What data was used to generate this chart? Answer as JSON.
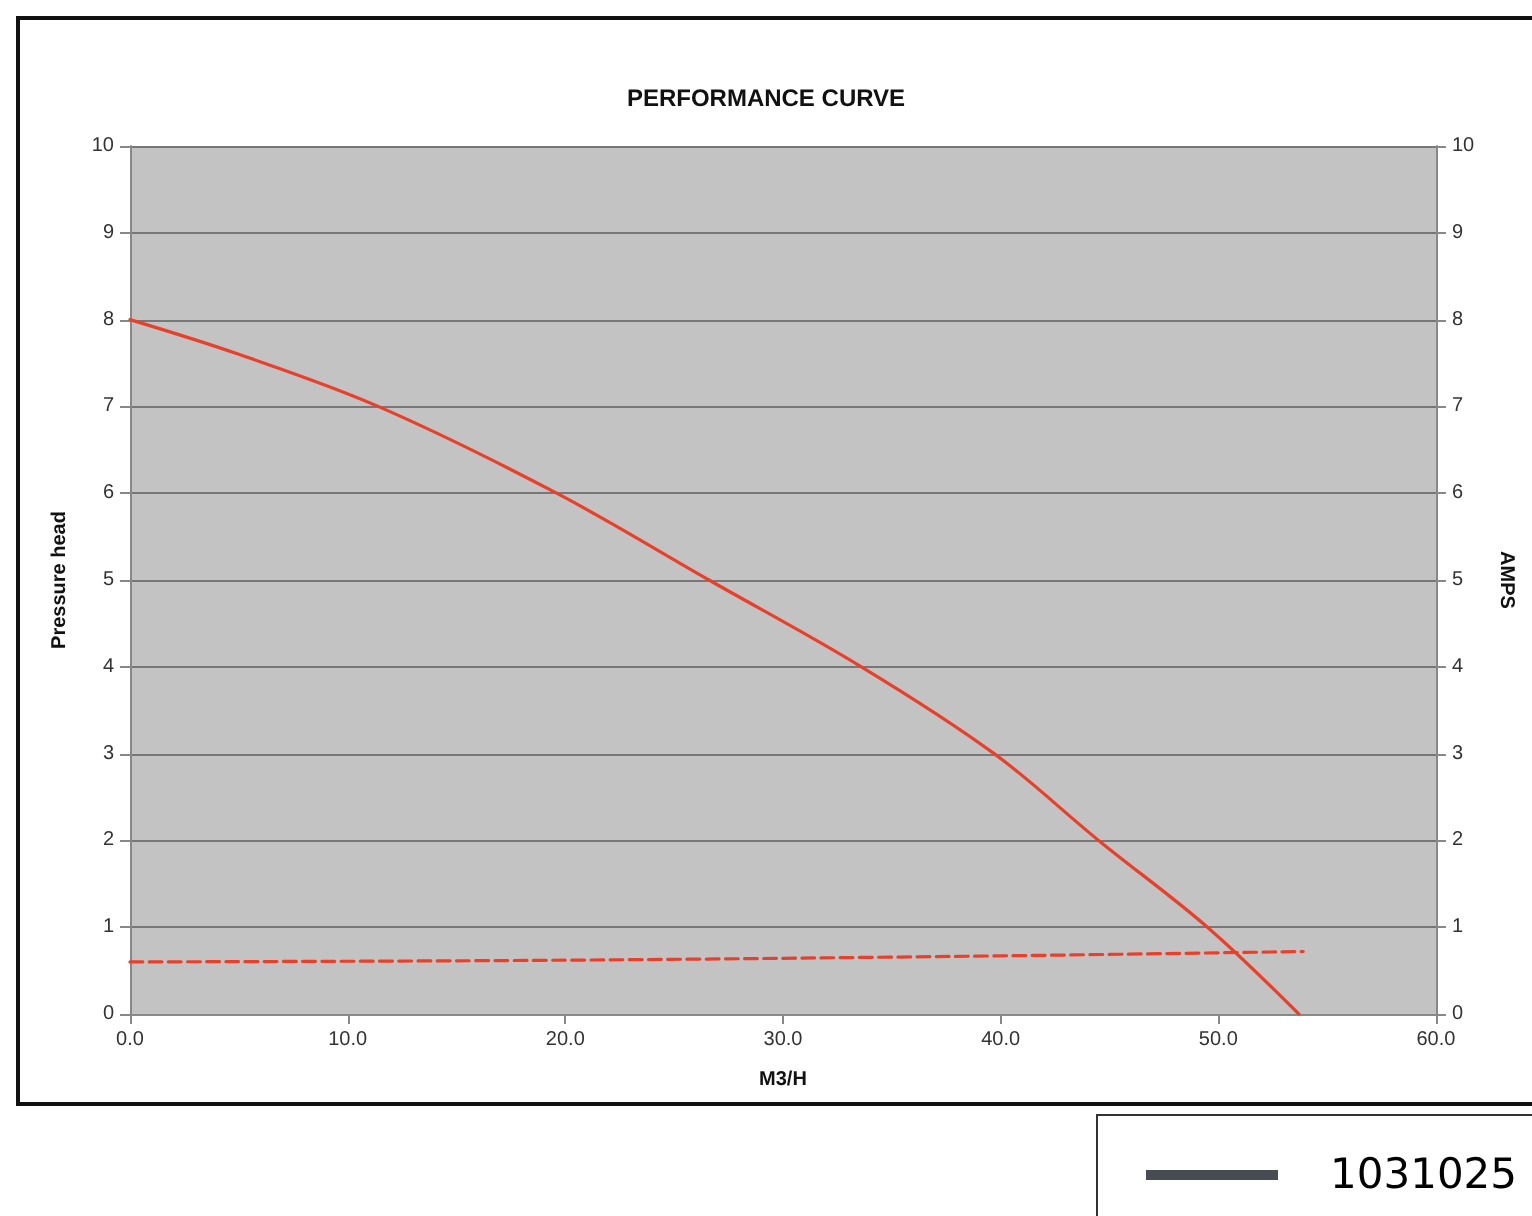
{
  "chart_data": {
    "type": "line",
    "title": "PERFORMANCE CURVE",
    "xlabel": "M3/H",
    "ylabel": "Pressure head",
    "y2label": "AMPS",
    "series": [
      {
        "color": "#e8402a",
        "line_style": "solid",
        "x": [
          0,
          5,
          11.4,
          19.6,
          26.6,
          33.6,
          39.7,
          44.5,
          49.5,
          53.7
        ],
        "values": [
          8,
          7.6,
          7,
          6,
          5,
          4,
          3,
          2,
          1,
          0
        ]
      },
      {
        "color": "#e8402a",
        "line_style": "dashed",
        "axis": "y2",
        "x": [
          0,
          20,
          40,
          53.9
        ],
        "values": [
          0.6,
          0.62,
          0.67,
          0.72
        ]
      }
    ],
    "xlim": [
      0,
      60
    ],
    "xticks": [
      {
        "value": 0,
        "label": "0.0"
      },
      {
        "value": 10,
        "label": "10.0"
      },
      {
        "value": 20,
        "label": "20.0"
      },
      {
        "value": 30,
        "label": "30.0"
      },
      {
        "value": 40,
        "label": "40.0"
      },
      {
        "value": 50,
        "label": "50.0"
      },
      {
        "value": 60,
        "label": "60.0"
      }
    ],
    "ylim": [
      0,
      10
    ],
    "yticks": [
      0,
      1,
      2,
      3,
      4,
      5,
      6,
      7,
      8,
      9,
      10
    ],
    "y2lim": [
      0,
      10
    ],
    "y2ticks": [
      0,
      1,
      2,
      3,
      4,
      5,
      6,
      7,
      8,
      9,
      10
    ],
    "grid": "y",
    "marker": "none",
    "annotations": [
      "1031025"
    ]
  }
}
